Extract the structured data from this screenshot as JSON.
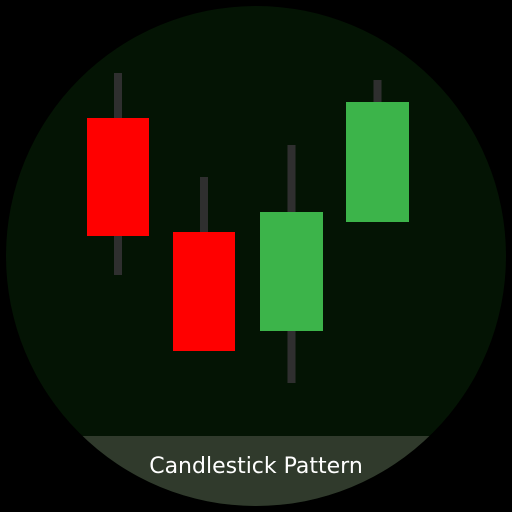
{
  "caption": "Candlestick Pattern",
  "colors": {
    "background": "#000000",
    "circle": "#041404",
    "band": "#303a2c",
    "bearish": "#ff0000",
    "bullish": "#3cb44a",
    "wick": "#2f2f2f",
    "text": "#ffffff"
  },
  "candles": [
    {
      "direction": "bearish"
    },
    {
      "direction": "bearish"
    },
    {
      "direction": "bullish"
    },
    {
      "direction": "bullish"
    }
  ]
}
